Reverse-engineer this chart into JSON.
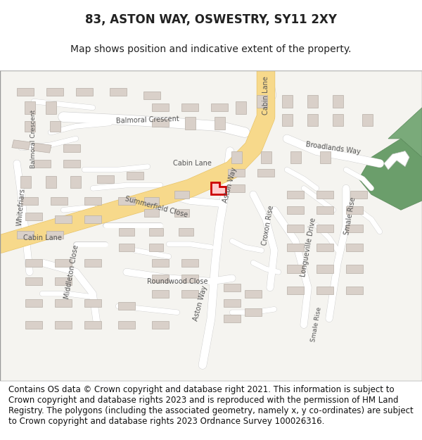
{
  "title": "83, ASTON WAY, OSWESTRY, SY11 2XY",
  "subtitle": "Map shows position and indicative extent of the property.",
  "footer": "Contains OS data © Crown copyright and database right 2021. This information is subject to Crown copyright and database rights 2023 and is reproduced with the permission of HM Land Registry. The polygons (including the associated geometry, namely x, y co-ordinates) are subject to Crown copyright and database rights 2023 Ordnance Survey 100026316.",
  "map_bg": "#f5f4f0",
  "road_yellow": "#f7d98b",
  "road_yellow_stroke": "#e8c46a",
  "building_fill": "#d9d0c9",
  "building_stroke": "#b8b0a8",
  "text_color": "#555555",
  "figsize": [
    6.0,
    6.25
  ],
  "dpi": 100,
  "title_fontsize": 12,
  "subtitle_fontsize": 10,
  "footer_fontsize": 8.5
}
